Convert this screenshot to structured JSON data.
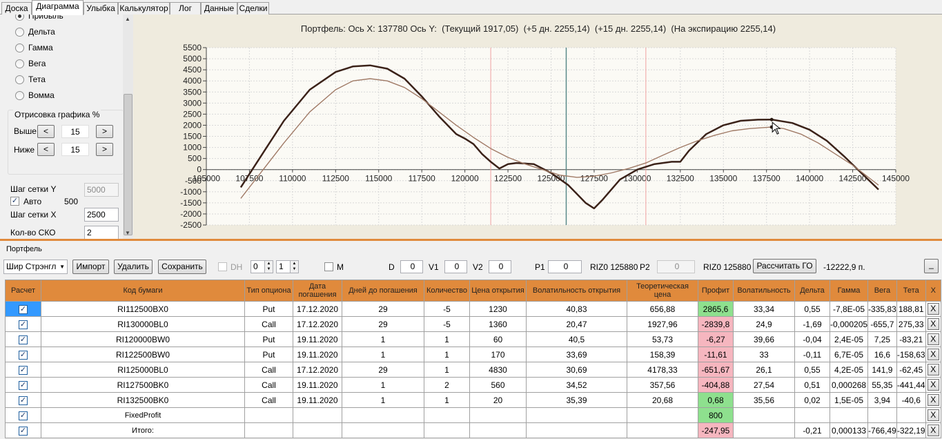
{
  "tabs": [
    "Доска",
    "Диаграмма",
    "Улыбка",
    "Калькулятор",
    "Лог",
    "Данные",
    "Сделки"
  ],
  "radios": [
    {
      "label": "Прибыль",
      "on": true
    },
    {
      "label": "Дельта",
      "on": false
    },
    {
      "label": "Гамма",
      "on": false
    },
    {
      "label": "Вега",
      "on": false
    },
    {
      "label": "Тета",
      "on": false
    },
    {
      "label": "Вомма",
      "on": false
    }
  ],
  "draw_group": {
    "title": "Отрисовка графика %",
    "above_label": "Выше",
    "above_value": "15",
    "below_label": "Ниже",
    "below_value": "15",
    "dec": "<",
    "inc": ">"
  },
  "grid": {
    "step_y_label": "Шаг сетки Y",
    "step_y_value": "5000",
    "auto_label": "Авто",
    "auto_value": "500",
    "step_x_label": "Шаг сетки X",
    "step_x_value": "2500",
    "sko_label": "Кол-во СКО",
    "sko_value": "2"
  },
  "chart_title": "Портфель: Ось X: 137780 Ось Y:  (Текущий 1917,05)  (+5 дн. 2255,14)  (+15 дн. 2255,14)  (На экспирацию 2255,14)",
  "chart_data": {
    "type": "line",
    "title": "Портфель: Ось X: 137780 Ось Y:  (Текущий 1917,05)  (+5 дн. 2255,14)  (+15 дн. 2255,14)  (На экспирацию 2255,14)",
    "xlim": [
      105000,
      145000
    ],
    "ylim": [
      -2500,
      5500
    ],
    "xticks": [
      105000,
      107500,
      110000,
      112500,
      115000,
      117500,
      120000,
      122500,
      125000,
      127500,
      130000,
      132500,
      135000,
      137500,
      140000,
      142500,
      145000
    ],
    "yticks": [
      5500,
      5000,
      4500,
      4000,
      3500,
      3000,
      2500,
      2000,
      1500,
      1000,
      500,
      0,
      -500,
      -1000,
      -1500,
      -2000,
      -2500
    ],
    "grid": true,
    "series": [
      {
        "color": "#3b2219",
        "x": [
          107000,
          108000,
          109500,
          111000,
          112500,
          113500,
          114500,
          115500,
          116500,
          117500,
          118500,
          119500,
          120000,
          120500,
          121000,
          121500,
          122000,
          122500,
          123000,
          124000,
          125000,
          126000,
          126500,
          127000,
          127500,
          128000,
          128500,
          129000,
          130000,
          131000,
          132000,
          132500,
          133000,
          134000,
          135000,
          136000,
          137000,
          137800,
          139000,
          140000,
          141000,
          142000,
          143000,
          144000
        ],
        "y": [
          -800,
          400,
          2200,
          3600,
          4400,
          4650,
          4700,
          4550,
          4100,
          3300,
          2400,
          1600,
          1400,
          1150,
          700,
          350,
          50,
          250,
          300,
          250,
          -150,
          -700,
          -1100,
          -1500,
          -1750,
          -1350,
          -900,
          -450,
          0,
          250,
          350,
          350,
          850,
          1600,
          2000,
          2200,
          2250,
          2255,
          2100,
          1800,
          1300,
          600,
          -150,
          -900
        ]
      },
      {
        "color": "#a07a66",
        "x": [
          107000,
          108000,
          109500,
          111000,
          112500,
          113500,
          114500,
          115500,
          116500,
          117500,
          118500,
          119500,
          120500,
          121500,
          122500,
          123500,
          124500,
          125500,
          126500,
          127500,
          128500,
          129500,
          130500,
          131500,
          132500,
          133500,
          134500,
          135500,
          136500,
          137800,
          138500,
          139500,
          140500,
          141500,
          142500,
          143500,
          144000
        ],
        "y": [
          -1300,
          -300,
          1200,
          2600,
          3600,
          4000,
          4100,
          4000,
          3700,
          3200,
          2600,
          2000,
          1450,
          950,
          550,
          250,
          0,
          -250,
          -350,
          -300,
          -150,
          50,
          300,
          650,
          1000,
          1300,
          1550,
          1750,
          1850,
          1917,
          1850,
          1600,
          1200,
          700,
          200,
          -400,
          -700
        ]
      }
    ]
  },
  "portfolio_label": "Портфель",
  "toolbar": {
    "strategy": "Шир Стрэнгл",
    "import": "Импорт",
    "delete": "Удалить",
    "save": "Сохранить",
    "dh": "DH",
    "spin1": "0",
    "spin2": "1",
    "m": "M",
    "d_label": "D",
    "d_val": "0",
    "v1_label": "V1",
    "v1_val": "0",
    "v2_label": "V2",
    "v2_val": "0",
    "p1_label": "P1",
    "p1_val": "0",
    "riz1": "RIZ0 125880",
    "p2_label": "P2",
    "p2_val": "0",
    "riz2": "RIZ0 125880",
    "calc_go": "Рассчитать ГО",
    "go_value": "-12222,9 п.",
    "min": "_"
  },
  "table": {
    "headers": [
      "Расчет",
      "Код бумаги",
      "Тип опциона",
      "Дата погашения",
      "Дней до погашения",
      "Количество",
      "Цена открытия",
      "Волатильность открытия",
      "Теоретическая цена",
      "Профит",
      "Волатильность",
      "Дельта",
      "Гамма",
      "Вега",
      "Тета",
      "X"
    ],
    "rows": [
      {
        "code": "RI112500BX0",
        "type": "Put",
        "date": "17.12.2020",
        "days": "29",
        "qty": "-5",
        "price": "1230",
        "vol_open": "40,83",
        "theo": "656,88",
        "profit": "2865,6",
        "pc": "pg",
        "vol": "33,34",
        "delta": "0,55",
        "gamma": "-7,8E-05",
        "vega": "-335,83",
        "theta": "188,81"
      },
      {
        "code": "RI130000BL0",
        "type": "Call",
        "date": "17.12.2020",
        "days": "29",
        "qty": "-5",
        "price": "1360",
        "vol_open": "20,47",
        "theo": "1927,96",
        "profit": "-2839,8",
        "pc": "pr",
        "vol": "24,9",
        "delta": "-1,69",
        "gamma": "-0,000205",
        "vega": "-655,7",
        "theta": "275,33"
      },
      {
        "code": "RI120000BW0",
        "type": "Put",
        "date": "19.11.2020",
        "days": "1",
        "qty": "1",
        "price": "60",
        "vol_open": "40,5",
        "theo": "53,73",
        "profit": "-6,27",
        "pc": "pr",
        "vol": "39,66",
        "delta": "-0,04",
        "gamma": "2,4E-05",
        "vega": "7,25",
        "theta": "-83,21"
      },
      {
        "code": "RI122500BW0",
        "type": "Put",
        "date": "19.11.2020",
        "days": "1",
        "qty": "1",
        "price": "170",
        "vol_open": "33,69",
        "theo": "158,39",
        "profit": "-11,61",
        "pc": "pr",
        "vol": "33",
        "delta": "-0,11",
        "gamma": "6,7E-05",
        "vega": "16,6",
        "theta": "-158,63"
      },
      {
        "code": "RI125000BL0",
        "type": "Call",
        "date": "17.12.2020",
        "days": "29",
        "qty": "1",
        "price": "4830",
        "vol_open": "30,69",
        "theo": "4178,33",
        "profit": "-651,67",
        "pc": "pr",
        "vol": "26,1",
        "delta": "0,55",
        "gamma": "4,2E-05",
        "vega": "141,9",
        "theta": "-62,45"
      },
      {
        "code": "RI127500BK0",
        "type": "Call",
        "date": "19.11.2020",
        "days": "1",
        "qty": "2",
        "price": "560",
        "vol_open": "34,52",
        "theo": "357,56",
        "profit": "-404,88",
        "pc": "pr",
        "vol": "27,54",
        "delta": "0,51",
        "gamma": "0,000268",
        "vega": "55,35",
        "theta": "-441,44"
      },
      {
        "code": "RI132500BK0",
        "type": "Call",
        "date": "19.11.2020",
        "days": "1",
        "qty": "1",
        "price": "20",
        "vol_open": "35,39",
        "theo": "20,68",
        "profit": "0,68",
        "pc": "pg",
        "vol": "35,56",
        "delta": "0,02",
        "gamma": "1,5E-05",
        "vega": "3,94",
        "theta": "-40,6"
      },
      {
        "code": "FixedProfit",
        "type": "",
        "date": "",
        "days": "",
        "qty": "",
        "price": "",
        "vol_open": "",
        "theo": "",
        "profit": "800",
        "pc": "pg",
        "vol": "",
        "delta": "",
        "gamma": "",
        "vega": "",
        "theta": ""
      },
      {
        "code": "Итого:",
        "type": "",
        "date": "",
        "days": "",
        "qty": "",
        "price": "",
        "vol_open": "",
        "theo": "",
        "profit": "-247,95",
        "pc": "pr",
        "vol": "",
        "delta": "-0,21",
        "gamma": "0,000133",
        "vega": "-766,49",
        "theta": "-322,19"
      }
    ],
    "check": "✓",
    "x": "X"
  }
}
